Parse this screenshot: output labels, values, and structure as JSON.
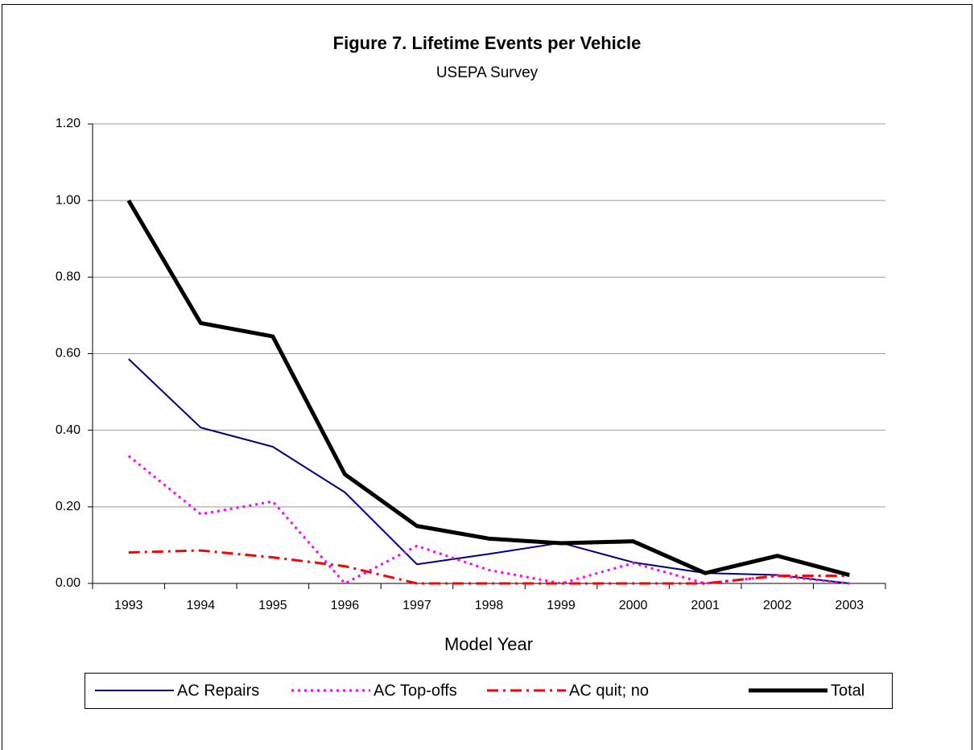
{
  "chart_data": {
    "type": "line",
    "title": "Figure 7.  Lifetime Events per Vehicle",
    "subtitle": "USEPA Survey",
    "x_label": "Model Year",
    "categories": [
      "1993",
      "1994",
      "1995",
      "1996",
      "1997",
      "1998",
      "1999",
      "2000",
      "2001",
      "2002",
      "2003"
    ],
    "series": [
      {
        "name": "AC Repairs",
        "color": "#000080",
        "dash": "solid",
        "values": [
          0.586,
          0.407,
          0.357,
          0.238,
          0.05,
          0.077,
          0.106,
          0.055,
          0.027,
          0.022,
          0.0
        ]
      },
      {
        "name": "AC Top-offs",
        "color": "#ff00ff",
        "dash": "dotted",
        "values": [
          0.333,
          0.181,
          0.214,
          0.0,
          0.098,
          0.035,
          0.0,
          0.053,
          0.0,
          0.02,
          0.0
        ]
      },
      {
        "name": "AC quit; no",
        "color": "#ff0000",
        "dash": "dashdot",
        "values": [
          0.081,
          0.086,
          0.068,
          0.045,
          0.0,
          0.0,
          0.0,
          0.0,
          0.0,
          0.02,
          0.02
        ]
      },
      {
        "name": "Total",
        "color": "#000000",
        "dash": "thick",
        "values": [
          1.0,
          0.68,
          0.645,
          0.285,
          0.15,
          0.117,
          0.105,
          0.11,
          0.027,
          0.072,
          0.022
        ]
      }
    ],
    "ylim": [
      0,
      1.2
    ],
    "yticks": [
      {
        "value": 0,
        "label": "0.00"
      },
      {
        "value": 0.2,
        "label": "0.20"
      },
      {
        "value": 0.4,
        "label": "0.40"
      },
      {
        "value": 0.6,
        "label": "0.60"
      },
      {
        "value": 0.8,
        "label": "0.80"
      },
      {
        "value": 1.0,
        "label": "1.00"
      },
      {
        "value": 1.2,
        "label": "1.20"
      }
    ],
    "grid": true,
    "legend": "bottom"
  }
}
